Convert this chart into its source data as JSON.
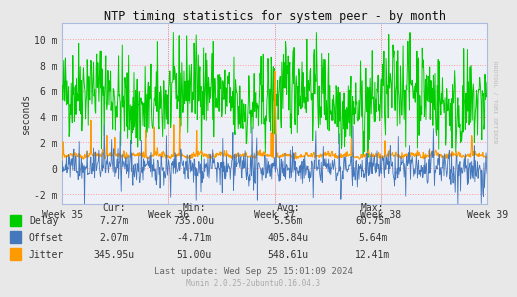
{
  "title": "NTP timing statistics for system peer - by month",
  "ylabel": "seconds",
  "fig_bg_color": "#e8e8e8",
  "plot_bg_color": "#eef0f8",
  "hgrid_color": "#ff9999",
  "vgrid_color": "#aabbcc",
  "x_tick_labels": [
    "Week 35",
    "Week 36",
    "Week 37",
    "Week 38",
    "Week 39"
  ],
  "y_tick_labels": [
    "-2 m",
    "0",
    "2 m",
    "4 m",
    "6 m",
    "8 m",
    "10 m"
  ],
  "y_ticks": [
    -0.002,
    0,
    0.002,
    0.004,
    0.006,
    0.008,
    0.01
  ],
  "ylim": [
    -0.0028,
    0.0112
  ],
  "xlim": [
    0,
    1
  ],
  "delay_color": "#00cc00",
  "offset_color": "#4477bb",
  "jitter_color": "#ff9900",
  "legend_labels": [
    "Delay",
    "Offset",
    "Jitter"
  ],
  "stats_header": [
    "Cur:",
    "Min:",
    "Avg:",
    "Max:"
  ],
  "stats_delay": [
    "7.27m",
    "735.00u",
    "5.56m",
    "60.75m"
  ],
  "stats_offset": [
    "2.07m",
    "-4.71m",
    "405.84u",
    "5.64m"
  ],
  "stats_jitter": [
    "345.95u",
    "51.00u",
    "548.61u",
    "12.41m"
  ],
  "last_update": "Last update: Wed Sep 25 15:01:09 2024",
  "munin_version": "Munin 2.0.25-2ubuntu0.16.04.3",
  "rrdtool_text": "RRDTOOL / TOBI OETIKER",
  "n_points": 800,
  "seed": 42
}
